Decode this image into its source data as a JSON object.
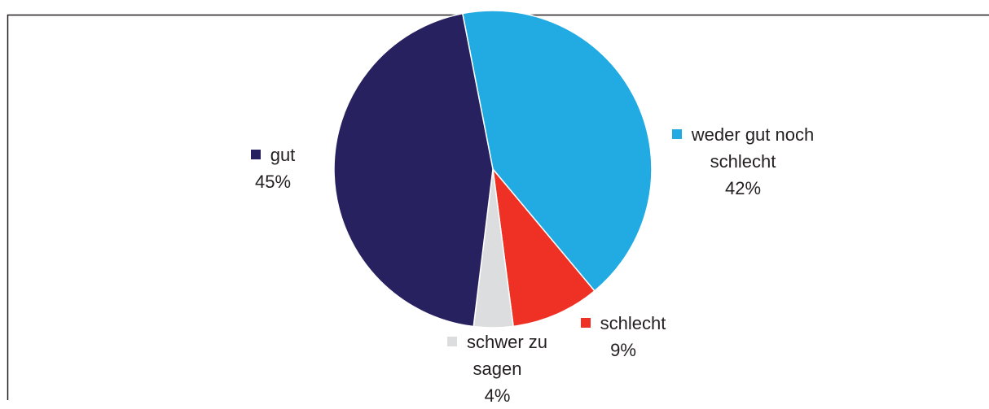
{
  "chart_data": {
    "type": "pie",
    "categories": [
      "weder gut noch schlecht",
      "schlecht",
      "schwer zu sagen",
      "gut"
    ],
    "values": [
      42,
      9,
      4,
      45
    ],
    "value_labels": [
      "42%",
      "9%",
      "4%",
      "45%"
    ],
    "colors": [
      "#22abe2",
      "#ee3124",
      "#dcddde",
      "#27225f"
    ]
  }
}
